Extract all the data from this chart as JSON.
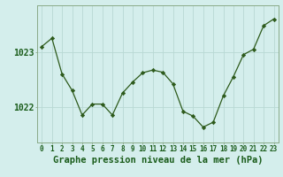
{
  "x": [
    0,
    1,
    2,
    3,
    4,
    5,
    6,
    7,
    8,
    9,
    10,
    11,
    12,
    13,
    14,
    15,
    16,
    17,
    18,
    19,
    20,
    21,
    22,
    23
  ],
  "y": [
    1023.1,
    1023.25,
    1022.6,
    1022.3,
    1021.85,
    1022.05,
    1022.05,
    1021.85,
    1022.25,
    1022.45,
    1022.62,
    1022.67,
    1022.63,
    1022.42,
    1021.92,
    1021.83,
    1021.63,
    1021.72,
    1022.2,
    1022.55,
    1022.95,
    1023.05,
    1023.48,
    1023.6
  ],
  "ylim": [
    1021.35,
    1023.85
  ],
  "yticks": [
    1022.0,
    1023.0
  ],
  "ytick_labels": [
    "1022",
    "1023"
  ],
  "xlabel": "Graphe pression niveau de la mer (hPa)",
  "line_color": "#2d5a1b",
  "marker_color": "#2d5a1b",
  "bg_color": "#d4eeec",
  "grid_color": "#b8d8d4",
  "border_color": "#8aaa88",
  "label_color": "#1a5c1a",
  "xlabel_fontsize": 7.5,
  "ytick_fontsize": 7.0,
  "xtick_fontsize": 5.5
}
